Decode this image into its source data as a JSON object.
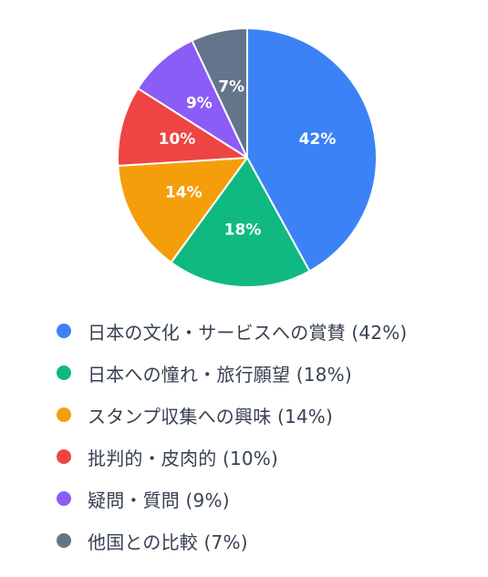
{
  "chart_data": {
    "type": "pie",
    "title": "",
    "slices": [
      {
        "label": "日本の文化・サービスへの賞賛",
        "value": 42,
        "display": "42%",
        "legend": "日本の文化・サービスへの賞賛 (42%)",
        "color": "#3b82f6"
      },
      {
        "label": "日本への憧れ・旅行願望",
        "value": 18,
        "display": "18%",
        "legend": "日本への憧れ・旅行願望 (18%)",
        "color": "#10b981"
      },
      {
        "label": "スタンプ収集への興味",
        "value": 14,
        "display": "14%",
        "legend": "スタンプ収集への興味 (14%)",
        "color": "#f59e0b"
      },
      {
        "label": "批判的・皮肉的",
        "value": 10,
        "display": "10%",
        "legend": "批判的・皮肉的 (10%)",
        "color": "#ef4444"
      },
      {
        "label": "疑問・質問",
        "value": 9,
        "display": "9%",
        "legend": "疑問・質問 (9%)",
        "color": "#8b5cf6"
      },
      {
        "label": "他国との比較",
        "value": 7,
        "display": "7%",
        "legend": "他国との比較 (7%)",
        "color": "#64748b"
      }
    ],
    "legend_position": "bottom",
    "start": "top",
    "direction": "clockwise"
  }
}
